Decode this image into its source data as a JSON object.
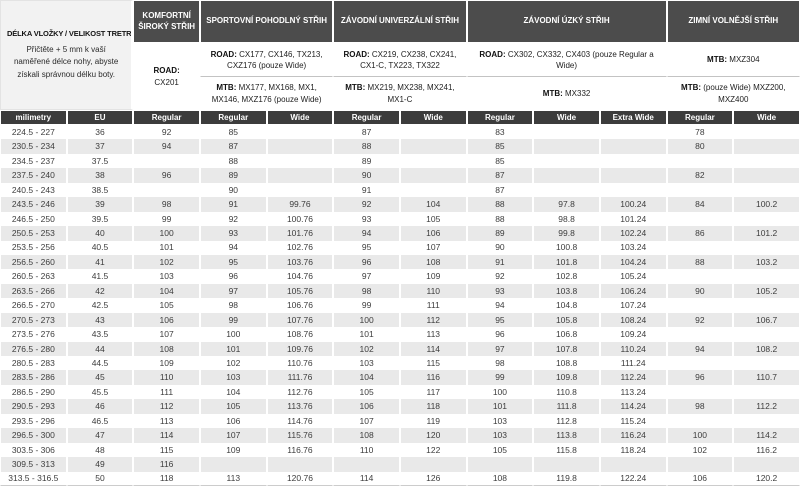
{
  "info": {
    "title": "DÉLKA VLOŽKY / VELIKOST TRETRY",
    "note": "Přičtěte + 5 mm k vaší naměřené délce nohy, abyste získali správnou délku boty."
  },
  "fits": [
    {
      "title": "KOMFORTNÍ ŠIROKÝ STŘIH",
      "cells": [
        {
          "prefix": "ROAD:",
          "models": "CX201"
        }
      ]
    },
    {
      "title": "SPORTOVNÍ POHODLNÝ STŘIH",
      "cells": [
        {
          "prefix": "ROAD:",
          "models": "CX177, CX146, TX213, CXZ176 (pouze Wide)"
        },
        {
          "prefix": "MTB:",
          "models": "MX177, MX168, MX1, MX146, MXZ176 (pouze Wide)"
        }
      ]
    },
    {
      "title": "ZÁVODNÍ UNIVERZÁLNÍ STŘIH",
      "cells": [
        {
          "prefix": "ROAD:",
          "models": "CX219, CX238, CX241, CX1-C, TX223, TX322"
        },
        {
          "prefix": "MTB:",
          "models": "MX219, MX238, MX241, MX1-C"
        }
      ]
    },
    {
      "title": "ZÁVODNÍ ÚZKÝ STŘIH",
      "cells": [
        {
          "prefix": "ROAD:",
          "models": "CX302, CX332, CX403 (pouze Regular a Wide)"
        },
        {
          "prefix": "MTB:",
          "models": "MX332"
        }
      ]
    },
    {
      "title": "ZIMNÍ VOLNĚJŠÍ STŘIH",
      "cells": [
        {
          "prefix": "MTB:",
          "models": "MXZ304"
        },
        {
          "prefix": "MTB:",
          "models": "(pouze Wide) MXZ200, MXZ400"
        }
      ]
    }
  ],
  "table": {
    "columns": [
      "milimetry",
      "EU",
      "Regular",
      "Regular",
      "Wide",
      "Regular",
      "Wide",
      "Regular",
      "Wide",
      "Extra Wide",
      "Regular",
      "Wide"
    ],
    "rows": [
      [
        "224.5 - 227",
        "36",
        "92",
        "85",
        "",
        "87",
        "",
        "83",
        "",
        "",
        "78",
        ""
      ],
      [
        "230.5 - 234",
        "37",
        "94",
        "87",
        "",
        "88",
        "",
        "85",
        "",
        "",
        "80",
        ""
      ],
      [
        "234.5 - 237",
        "37.5",
        "",
        "88",
        "",
        "89",
        "",
        "85",
        "",
        "",
        "",
        ""
      ],
      [
        "237.5 - 240",
        "38",
        "96",
        "89",
        "",
        "90",
        "",
        "87",
        "",
        "",
        "82",
        ""
      ],
      [
        "240.5 - 243",
        "38.5",
        "",
        "90",
        "",
        "91",
        "",
        "87",
        "",
        "",
        "",
        ""
      ],
      [
        "243.5 - 246",
        "39",
        "98",
        "91",
        "99.76",
        "92",
        "104",
        "88",
        "97.8",
        "100.24",
        "84",
        "100.2"
      ],
      [
        "246.5 - 250",
        "39.5",
        "99",
        "92",
        "100.76",
        "93",
        "105",
        "88",
        "98.8",
        "101.24",
        "",
        ""
      ],
      [
        "250.5 - 253",
        "40",
        "100",
        "93",
        "101.76",
        "94",
        "106",
        "89",
        "99.8",
        "102.24",
        "86",
        "101.2"
      ],
      [
        "253.5 - 256",
        "40.5",
        "101",
        "94",
        "102.76",
        "95",
        "107",
        "90",
        "100.8",
        "103.24",
        "",
        ""
      ],
      [
        "256.5 - 260",
        "41",
        "102",
        "95",
        "103.76",
        "96",
        "108",
        "91",
        "101.8",
        "104.24",
        "88",
        "103.2"
      ],
      [
        "260.5 - 263",
        "41.5",
        "103",
        "96",
        "104.76",
        "97",
        "109",
        "92",
        "102.8",
        "105.24",
        "",
        ""
      ],
      [
        "263.5 - 266",
        "42",
        "104",
        "97",
        "105.76",
        "98",
        "110",
        "93",
        "103.8",
        "106.24",
        "90",
        "105.2"
      ],
      [
        "266.5 - 270",
        "42.5",
        "105",
        "98",
        "106.76",
        "99",
        "111",
        "94",
        "104.8",
        "107.24",
        "",
        ""
      ],
      [
        "270.5 - 273",
        "43",
        "106",
        "99",
        "107.76",
        "100",
        "112",
        "95",
        "105.8",
        "108.24",
        "92",
        "106.7"
      ],
      [
        "273.5 - 276",
        "43.5",
        "107",
        "100",
        "108.76",
        "101",
        "113",
        "96",
        "106.8",
        "109.24",
        "",
        ""
      ],
      [
        "276.5 - 280",
        "44",
        "108",
        "101",
        "109.76",
        "102",
        "114",
        "97",
        "107.8",
        "110.24",
        "94",
        "108.2"
      ],
      [
        "280.5 - 283",
        "44.5",
        "109",
        "102",
        "110.76",
        "103",
        "115",
        "98",
        "108.8",
        "111.24",
        "",
        ""
      ],
      [
        "283.5 - 286",
        "45",
        "110",
        "103",
        "111.76",
        "104",
        "116",
        "99",
        "109.8",
        "112.24",
        "96",
        "110.7"
      ],
      [
        "286.5 - 290",
        "45.5",
        "111",
        "104",
        "112.76",
        "105",
        "117",
        "100",
        "110.8",
        "113.24",
        "",
        ""
      ],
      [
        "290.5 - 293",
        "46",
        "112",
        "105",
        "113.76",
        "106",
        "118",
        "101",
        "111.8",
        "114.24",
        "98",
        "112.2"
      ],
      [
        "293.5 - 296",
        "46.5",
        "113",
        "106",
        "114.76",
        "107",
        "119",
        "103",
        "112.8",
        "115.24",
        "",
        ""
      ],
      [
        "296.5 - 300",
        "47",
        "114",
        "107",
        "115.76",
        "108",
        "120",
        "103",
        "113.8",
        "116.24",
        "100",
        "114.2"
      ],
      [
        "303.5 - 306",
        "48",
        "115",
        "109",
        "116.76",
        "110",
        "122",
        "105",
        "115.8",
        "118.24",
        "102",
        "116.2"
      ],
      [
        "309.5 - 313",
        "49",
        "116",
        "",
        "",
        "",
        "",
        "",
        "",
        "",
        "",
        ""
      ],
      [
        "313.5 - 316.5",
        "50",
        "118",
        "113",
        "120.76",
        "114",
        "126",
        "108",
        "119.8",
        "122.24",
        "106",
        "120.2"
      ]
    ]
  },
  "colors": {
    "header_dark": "#4c4c4c",
    "subheader_dark": "#3c3c3c",
    "stripe": "#e9e9e9",
    "info_bg": "#f2f2f2"
  }
}
